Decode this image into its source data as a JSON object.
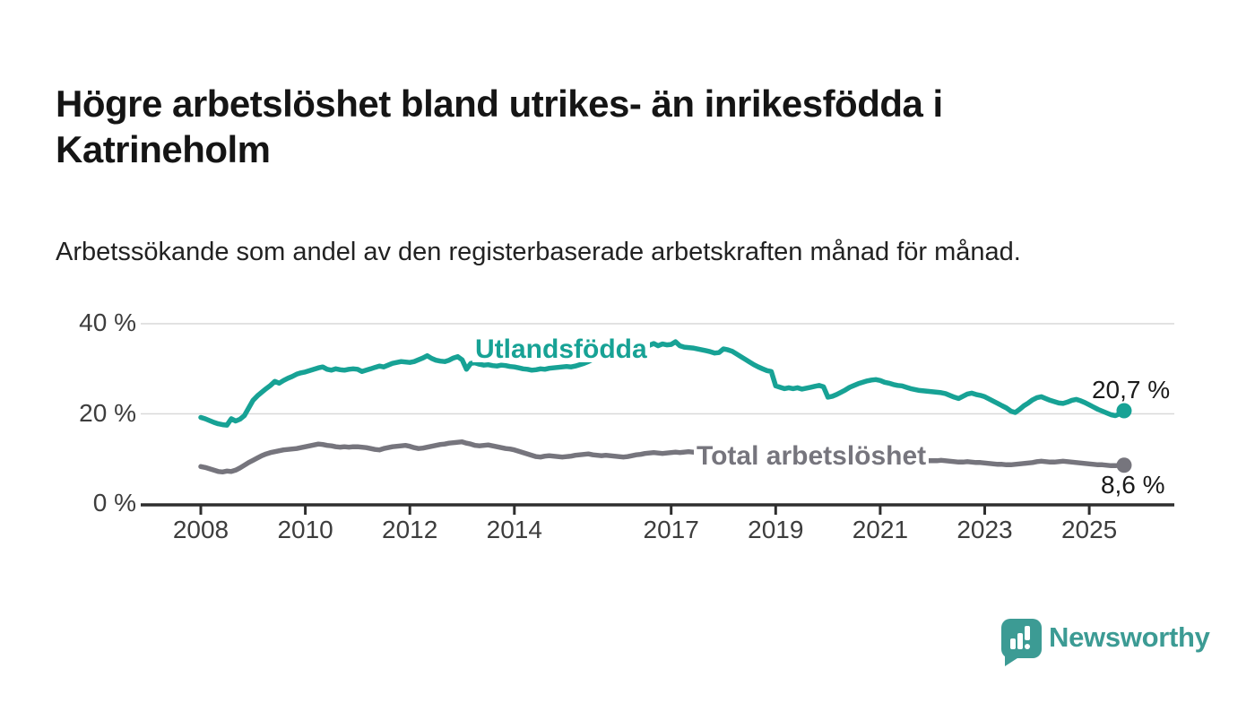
{
  "title": "Högre arbetslöshet bland utrikes- än inrikesfödda i Katrineholm",
  "subtitle": "Arbetssökande som andel av den registerbaserade arbetskraften månad för månad.",
  "branding": {
    "name": "Newsworthy",
    "logo_icon": "speech-bubble-bar-chart",
    "color": "#3c9b94"
  },
  "colors": {
    "background": "#ffffff",
    "title_text": "#151515",
    "subtitle_text": "#222222",
    "axis": "#2e2e2e",
    "gridline": "#d9d9d9",
    "tick_text": "#3d3d3d",
    "series_foreign_born": "#17a295",
    "series_total": "#76757d"
  },
  "chart_data": {
    "type": "line",
    "title": "Högre arbetslöshet bland utrikes- än inrikesfödda i Katrineholm",
    "subtitle": "Arbetssökande som andel av den registerbaserade arbetskraften månad för månad.",
    "xlabel": "",
    "ylabel": "",
    "x_unit": "year (monthly data)",
    "x_start": 2008.0,
    "x_step_years": 0.08333,
    "x_ticks": [
      2008,
      2010,
      2012,
      2014,
      2017,
      2019,
      2021,
      2023,
      2025
    ],
    "y_ticks": [
      {
        "v": 0,
        "label": "0 %"
      },
      {
        "v": 20,
        "label": "20 %"
      },
      {
        "v": 40,
        "label": "40 %"
      }
    ],
    "ylim": [
      0,
      42
    ],
    "grid": "horizontal-only",
    "legend_position": "inline-on-series",
    "series": [
      {
        "name": "Utlandsfödda",
        "color": "#17a295",
        "end_label": "20,7 %",
        "end_value": 20.7,
        "values": [
          19.2,
          18.9,
          18.5,
          18.1,
          17.8,
          17.6,
          17.5,
          18.9,
          18.4,
          18.8,
          19.6,
          21.3,
          23.0,
          24.0,
          24.8,
          25.6,
          26.3,
          27.2,
          26.8,
          27.4,
          27.9,
          28.3,
          28.8,
          29.1,
          29.3,
          29.6,
          29.9,
          30.2,
          30.4,
          29.9,
          29.7,
          30.0,
          29.8,
          29.7,
          29.9,
          30.0,
          29.9,
          29.4,
          29.7,
          30.0,
          30.3,
          30.6,
          30.4,
          30.8,
          31.2,
          31.4,
          31.6,
          31.5,
          31.4,
          31.6,
          32.0,
          32.4,
          32.9,
          32.3,
          31.9,
          31.7,
          31.6,
          31.9,
          32.4,
          32.7,
          32.0,
          29.9,
          31.2,
          31.3,
          31.0,
          30.8,
          30.9,
          30.7,
          30.6,
          30.8,
          30.7,
          30.5,
          30.4,
          30.2,
          30.0,
          29.9,
          29.7,
          29.8,
          30.0,
          29.9,
          30.1,
          30.2,
          30.3,
          30.4,
          30.5,
          30.4,
          30.6,
          30.9,
          31.2,
          31.6,
          32.1,
          32.5,
          32.9,
          33.3,
          33.5,
          33.2,
          33.0,
          33.3,
          33.6,
          33.8,
          34.1,
          34.4,
          34.7,
          35.2,
          35.6,
          35.1,
          35.5,
          35.3,
          35.4,
          36.0,
          35.1,
          34.8,
          34.7,
          34.6,
          34.4,
          34.2,
          34.0,
          33.8,
          33.5,
          33.6,
          34.4,
          34.2,
          33.9,
          33.3,
          32.7,
          32.1,
          31.5,
          30.9,
          30.4,
          30.0,
          29.6,
          29.4,
          26.2,
          25.9,
          25.6,
          25.8,
          25.6,
          25.8,
          25.5,
          25.7,
          25.9,
          26.1,
          26.3,
          26.0,
          23.7,
          23.9,
          24.3,
          24.8,
          25.3,
          25.9,
          26.3,
          26.7,
          27.0,
          27.3,
          27.5,
          27.6,
          27.4,
          27.0,
          26.8,
          26.5,
          26.3,
          26.2,
          25.9,
          25.6,
          25.4,
          25.2,
          25.1,
          25.0,
          24.9,
          24.8,
          24.7,
          24.5,
          24.1,
          23.7,
          23.4,
          23.9,
          24.4,
          24.6,
          24.3,
          24.1,
          23.8,
          23.3,
          22.8,
          22.3,
          21.8,
          21.3,
          20.6,
          20.3,
          21.0,
          21.8,
          22.4,
          23.1,
          23.6,
          23.8,
          23.4,
          23.0,
          22.7,
          22.4,
          22.3,
          22.6,
          23.0,
          23.2,
          22.9,
          22.5,
          22.0,
          21.5,
          21.0,
          20.6,
          20.2,
          19.8,
          19.6,
          20.0,
          20.7
        ]
      },
      {
        "name": "Total arbetslöshet",
        "color": "#76757d",
        "end_label": "8,6 %",
        "end_value": 8.6,
        "values": [
          8.3,
          8.1,
          7.8,
          7.5,
          7.2,
          7.1,
          7.3,
          7.2,
          7.5,
          8.0,
          8.6,
          9.2,
          9.7,
          10.2,
          10.7,
          11.1,
          11.4,
          11.6,
          11.8,
          12.0,
          12.1,
          12.2,
          12.3,
          12.5,
          12.7,
          12.9,
          13.1,
          13.3,
          13.2,
          13.0,
          12.9,
          12.7,
          12.6,
          12.7,
          12.6,
          12.7,
          12.7,
          12.6,
          12.5,
          12.3,
          12.1,
          12.0,
          12.3,
          12.5,
          12.7,
          12.8,
          12.9,
          13.0,
          12.8,
          12.5,
          12.3,
          12.4,
          12.6,
          12.8,
          13.0,
          13.2,
          13.3,
          13.5,
          13.6,
          13.7,
          13.8,
          13.5,
          13.3,
          13.0,
          12.9,
          13.0,
          13.1,
          12.9,
          12.7,
          12.5,
          12.3,
          12.2,
          12.0,
          11.7,
          11.4,
          11.1,
          10.8,
          10.5,
          10.4,
          10.6,
          10.7,
          10.6,
          10.5,
          10.4,
          10.5,
          10.6,
          10.8,
          10.9,
          11.0,
          11.1,
          10.9,
          10.8,
          10.7,
          10.8,
          10.7,
          10.6,
          10.5,
          10.4,
          10.5,
          10.7,
          10.9,
          11.0,
          11.2,
          11.3,
          11.4,
          11.3,
          11.2,
          11.3,
          11.4,
          11.5,
          11.4,
          11.5,
          11.6,
          11.5,
          11.4,
          11.3,
          11.2,
          11.2,
          11.1,
          11.1,
          11.0,
          11.0,
          10.9,
          10.9,
          10.8,
          10.8,
          10.7,
          10.7,
          10.6,
          10.6,
          10.5,
          10.5,
          10.4,
          10.4,
          10.3,
          10.3,
          10.2,
          10.2,
          10.1,
          10.1,
          10.0,
          10.0,
          10.0,
          10.1,
          10.2,
          10.3,
          10.6,
          11.0,
          11.2,
          11.3,
          11.4,
          11.3,
          11.2,
          11.1,
          11.0,
          10.9,
          10.8,
          10.7,
          10.6,
          10.4,
          10.3,
          10.1,
          10.0,
          9.9,
          9.8,
          9.7,
          9.7,
          9.6,
          9.6,
          9.6,
          9.7,
          9.6,
          9.5,
          9.4,
          9.3,
          9.3,
          9.4,
          9.3,
          9.2,
          9.2,
          9.1,
          9.0,
          8.9,
          8.8,
          8.8,
          8.7,
          8.7,
          8.8,
          8.9,
          9.0,
          9.1,
          9.2,
          9.4,
          9.5,
          9.4,
          9.3,
          9.3,
          9.4,
          9.5,
          9.4,
          9.3,
          9.2,
          9.1,
          9.0,
          8.9,
          8.8,
          8.7,
          8.7,
          8.6,
          8.5,
          8.5,
          8.6,
          8.6
        ]
      }
    ]
  }
}
